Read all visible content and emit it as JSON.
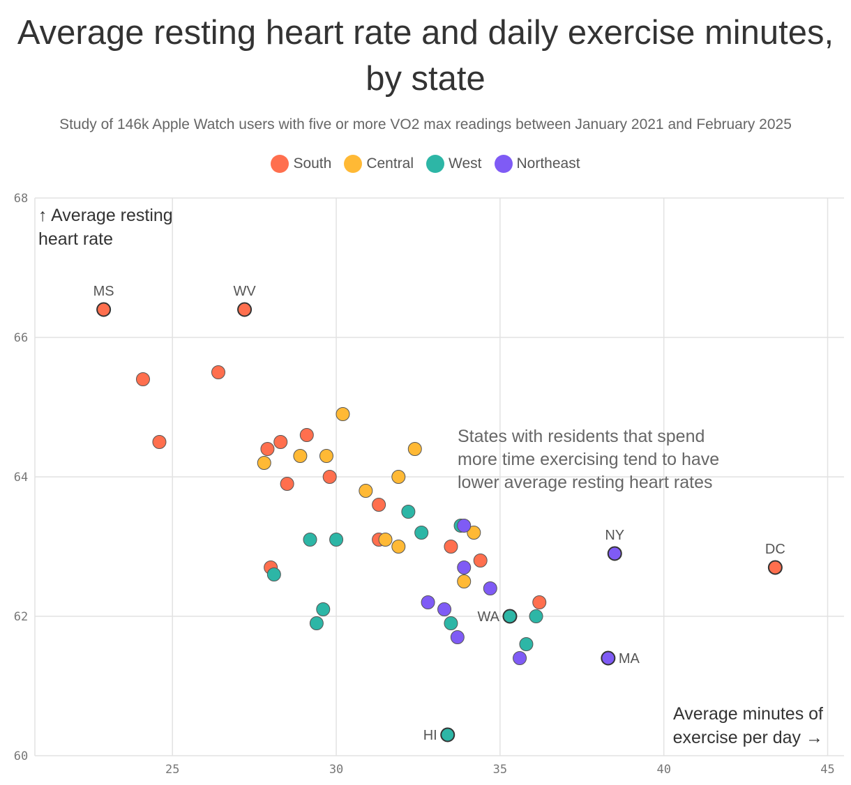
{
  "chart_data": {
    "type": "scatter",
    "title": "Average resting heart rate and daily exercise minutes, by state",
    "subtitle": "Study of 146k Apple Watch users with five or more VO2 max readings between January 2021 and February 2025",
    "xlabel": [
      "Average minutes of",
      "exercise per day →"
    ],
    "ylabel": [
      "↑ Average resting",
      "heart rate"
    ],
    "annotation": [
      "States with residents that spend",
      "more time exercising tend to have",
      "lower average resting heart rates"
    ],
    "xlim": [
      20.8,
      45.5
    ],
    "ylim": [
      60,
      68
    ],
    "xticks": [
      25,
      30,
      35,
      40,
      45
    ],
    "yticks": [
      60,
      62,
      64,
      66,
      68
    ],
    "grid": true,
    "legend_position": "top-center",
    "series": [
      {
        "name": "South",
        "color": "#FF6F4E",
        "points": [
          {
            "x": 22.9,
            "y": 66.4,
            "label": "MS"
          },
          {
            "x": 27.2,
            "y": 66.4,
            "label": "WV"
          },
          {
            "x": 24.1,
            "y": 65.4
          },
          {
            "x": 26.4,
            "y": 65.5
          },
          {
            "x": 24.6,
            "y": 64.5
          },
          {
            "x": 29.1,
            "y": 64.6
          },
          {
            "x": 28.3,
            "y": 64.5
          },
          {
            "x": 27.9,
            "y": 64.4
          },
          {
            "x": 29.8,
            "y": 64.0
          },
          {
            "x": 28.5,
            "y": 63.9
          },
          {
            "x": 31.3,
            "y": 63.6
          },
          {
            "x": 31.3,
            "y": 63.1
          },
          {
            "x": 33.5,
            "y": 63.0
          },
          {
            "x": 34.4,
            "y": 62.8
          },
          {
            "x": 28.0,
            "y": 62.7
          },
          {
            "x": 36.2,
            "y": 62.2
          },
          {
            "x": 43.4,
            "y": 62.7,
            "label": "DC"
          }
        ]
      },
      {
        "name": "Central",
        "color": "#FFB935",
        "points": [
          {
            "x": 30.2,
            "y": 64.9
          },
          {
            "x": 27.8,
            "y": 64.2
          },
          {
            "x": 28.9,
            "y": 64.3
          },
          {
            "x": 29.7,
            "y": 64.3
          },
          {
            "x": 32.4,
            "y": 64.4
          },
          {
            "x": 31.9,
            "y": 64.0
          },
          {
            "x": 30.9,
            "y": 63.8
          },
          {
            "x": 34.2,
            "y": 63.2
          },
          {
            "x": 31.5,
            "y": 63.1
          },
          {
            "x": 31.9,
            "y": 63.0
          },
          {
            "x": 33.9,
            "y": 62.5
          }
        ]
      },
      {
        "name": "West",
        "color": "#2DB6A6",
        "points": [
          {
            "x": 32.2,
            "y": 63.5
          },
          {
            "x": 33.8,
            "y": 63.3
          },
          {
            "x": 32.6,
            "y": 63.2
          },
          {
            "x": 29.2,
            "y": 63.1
          },
          {
            "x": 30.0,
            "y": 63.1
          },
          {
            "x": 28.1,
            "y": 62.6
          },
          {
            "x": 29.6,
            "y": 62.1
          },
          {
            "x": 29.4,
            "y": 61.9
          },
          {
            "x": 33.5,
            "y": 61.9
          },
          {
            "x": 35.3,
            "y": 62.0,
            "label": "WA"
          },
          {
            "x": 36.1,
            "y": 62.0
          },
          {
            "x": 35.8,
            "y": 61.6
          },
          {
            "x": 33.4,
            "y": 60.3,
            "label": "HI"
          }
        ]
      },
      {
        "name": "Northeast",
        "color": "#7F5BF5",
        "points": [
          {
            "x": 33.9,
            "y": 63.3
          },
          {
            "x": 33.9,
            "y": 62.7
          },
          {
            "x": 34.7,
            "y": 62.4
          },
          {
            "x": 32.8,
            "y": 62.2
          },
          {
            "x": 33.3,
            "y": 62.1
          },
          {
            "x": 33.7,
            "y": 61.7
          },
          {
            "x": 35.6,
            "y": 61.4
          },
          {
            "x": 38.3,
            "y": 61.4,
            "label": "MA"
          },
          {
            "x": 38.5,
            "y": 62.9,
            "label": "NY"
          }
        ]
      }
    ]
  }
}
